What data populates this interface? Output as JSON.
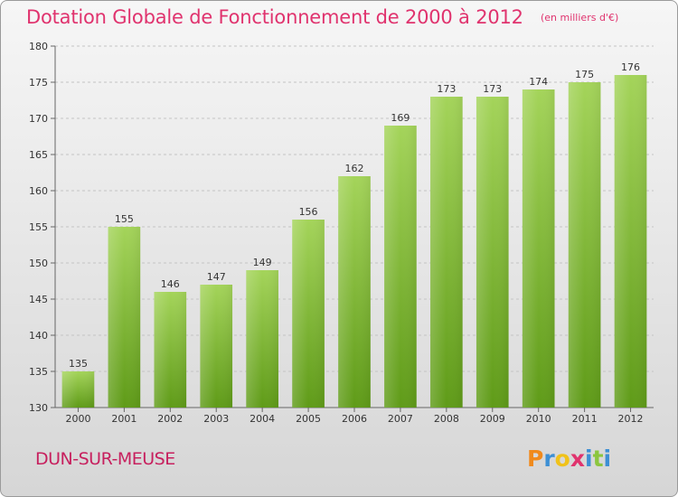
{
  "header": {
    "title": "Dotation Globale de Fonctionnement de 2000 à 2012",
    "unit": "(en milliers d'€)"
  },
  "footer": {
    "place": "DUN-SUR-MEUSE",
    "logo_letters": [
      "P",
      "r",
      "o",
      "x",
      "i",
      "t",
      "i"
    ]
  },
  "colors": {
    "title": "#e0336e",
    "place": "#c7205e",
    "bar_top": "#a4d45a",
    "bar_bottom": "#5f9b18",
    "logo": [
      "#f08a1c",
      "#3d8fd4",
      "#f0c21a",
      "#e0336e",
      "#3d8fd4",
      "#8cc63f",
      "#3d8fd4"
    ]
  },
  "chart_data": {
    "type": "bar",
    "title": "Dotation Globale de Fonctionnement de 2000 à 2012",
    "subtitle": "(en milliers d'€)",
    "categories": [
      "2000",
      "2001",
      "2002",
      "2003",
      "2004",
      "2005",
      "2006",
      "2007",
      "2008",
      "2009",
      "2010",
      "2011",
      "2012"
    ],
    "values": [
      135,
      155,
      146,
      147,
      149,
      156,
      162,
      169,
      173,
      173,
      174,
      175,
      176
    ],
    "ylim": [
      130,
      180
    ],
    "yticks": [
      130,
      135,
      140,
      145,
      150,
      155,
      160,
      165,
      170,
      175,
      180
    ],
    "grid": true,
    "data_labels": true
  }
}
